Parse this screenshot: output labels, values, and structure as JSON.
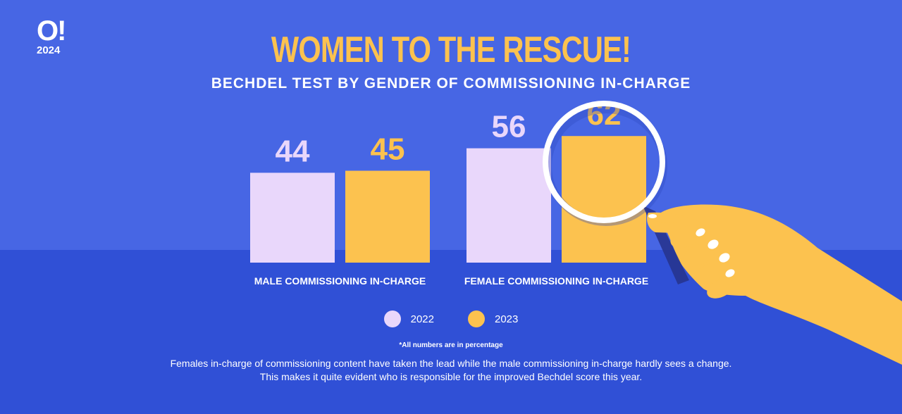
{
  "brand": {
    "mark": "O!",
    "year": "2024"
  },
  "title": "WOMEN TO THE RESCUE!",
  "subtitle": "BECHDEL TEST BY GENDER OF COMMISSIONING IN-CHARGE",
  "colors": {
    "background": "#4766e4",
    "floor": "#3050d6",
    "series_2022": "#e9d7fb",
    "series_2023": "#fcc24f",
    "title": "#fcc24f"
  },
  "chart_data": {
    "type": "bar",
    "categories": [
      "MALE COMMISSIONING IN-CHARGE",
      "FEMALE COMMISSIONING IN-CHARGE"
    ],
    "series": [
      {
        "name": "2022",
        "values": [
          44,
          56
        ]
      },
      {
        "name": "2023",
        "values": [
          45,
          62
        ]
      }
    ],
    "ylim": [
      0,
      100
    ],
    "legend_position": "bottom-center",
    "grid": false
  },
  "legend": [
    {
      "label": "2022",
      "color": "#e9d7fb"
    },
    {
      "label": "2023",
      "color": "#fcc24f"
    }
  ],
  "note": "*All numbers are in percentage",
  "caption": [
    "Females in-charge of commissioning content have taken the lead while the male commissioning in-charge hardly sees a change.",
    "This makes it quite evident who is responsible for the improved Bechdel score this year."
  ],
  "illustration": {
    "icon": "magnifying-glass-hand-icon"
  }
}
